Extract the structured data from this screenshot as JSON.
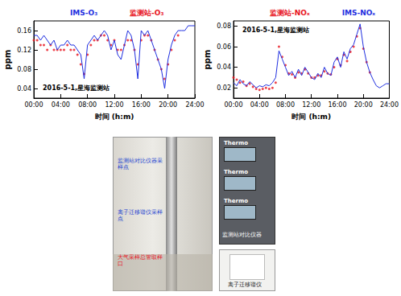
{
  "chart_data": [
    {
      "type": "line",
      "legend": "top",
      "grid": false,
      "annotation": "2016-5-1,星海监测站",
      "x_label": "时间 (h:m)",
      "y_label": "ppm",
      "x": [
        0,
        0.5,
        1,
        1.5,
        2,
        2.5,
        3,
        3.5,
        4,
        4.5,
        5,
        5.5,
        6,
        6.5,
        7,
        7.5,
        8,
        8.5,
        9,
        9.5,
        10,
        10.5,
        11,
        11.5,
        12,
        12.5,
        13,
        13.5,
        14,
        14.5,
        15,
        15.5,
        16,
        16.5,
        17,
        17.5,
        18,
        18.5,
        19,
        19.5,
        20,
        20.5,
        21,
        21.5,
        22,
        22.5,
        23,
        23.5,
        24
      ],
      "xlim": [
        0,
        24
      ],
      "xticks": [
        {
          "value": 0,
          "label": "00:00"
        },
        {
          "value": 4,
          "label": "04:00"
        },
        {
          "value": 8,
          "label": "08:00"
        },
        {
          "value": 12,
          "label": "12:00"
        },
        {
          "value": 16,
          "label": "16:00"
        },
        {
          "value": 20,
          "label": "20:00"
        },
        {
          "value": 24,
          "label": "24:00"
        }
      ],
      "ylim": [
        0.02,
        0.18
      ],
      "yticks": [
        0.04,
        0.08,
        0.12,
        0.16
      ],
      "series": [
        {
          "name": "IMS-O₃",
          "type": "line",
          "color": "#1f2fe0",
          "line_style": "solid",
          "values": [
            0.15,
            0.15,
            0.14,
            0.15,
            0.14,
            0.13,
            0.14,
            0.12,
            0.13,
            0.13,
            0.14,
            0.13,
            0.13,
            0.12,
            0.11,
            0.06,
            0.13,
            0.14,
            0.15,
            0.14,
            0.15,
            0.16,
            0.15,
            0.12,
            0.14,
            0.11,
            0.1,
            0.13,
            0.16,
            0.15,
            0.12,
            0.06,
            0.16,
            0.15,
            0.16,
            0.14,
            0.12,
            0.1,
            0.08,
            0.04,
            0.1,
            0.13,
            0.15,
            0.16,
            0.16,
            0.16,
            0.17,
            0.17,
            0.17
          ]
        },
        {
          "name": "监测站-O₃",
          "type": "scatter",
          "color": "#e8141e",
          "marker": "circle",
          "values": [
            0.14,
            0.14,
            0.13,
            0.13,
            0.12,
            0.13,
            0.12,
            0.12,
            0.12,
            0.12,
            0.13,
            0.12,
            0.12,
            0.11,
            0.09,
            0.07,
            0.11,
            0.13,
            0.14,
            0.14,
            0.15,
            0.15,
            0.14,
            0.13,
            0.14,
            0.12,
            0.12,
            0.13,
            0.14,
            0.14,
            0.12,
            0.09,
            0.14,
            0.15,
            0.15,
            0.14,
            0.12,
            0.1,
            0.08,
            0.06,
            0.09,
            0.12,
            0.14,
            0.15,
            null,
            null,
            null,
            null,
            null
          ]
        }
      ]
    },
    {
      "type": "line",
      "legend": "top",
      "grid": false,
      "annotation": "2016-5-1,星海监测站",
      "x_label": "时间 (h:m)",
      "y_label": "ppm",
      "x": [
        0,
        0.5,
        1,
        1.5,
        2,
        2.5,
        3,
        3.5,
        4,
        4.5,
        5,
        5.5,
        6,
        6.5,
        7,
        7.5,
        8,
        8.5,
        9,
        9.5,
        10,
        10.5,
        11,
        11.5,
        12,
        12.5,
        13,
        13.5,
        14,
        14.5,
        15,
        15.5,
        16,
        16.5,
        17,
        17.5,
        18,
        18.5,
        19,
        19.5,
        20,
        20.5,
        21,
        21.5,
        22,
        22.5,
        23,
        23.5,
        24
      ],
      "xlim": [
        0,
        24
      ],
      "xticks": [
        {
          "value": 0,
          "label": "00:00"
        },
        {
          "value": 4,
          "label": "04:00"
        },
        {
          "value": 8,
          "label": "08:00"
        },
        {
          "value": 12,
          "label": "12:00"
        },
        {
          "value": 16,
          "label": "16:00"
        },
        {
          "value": 20,
          "label": "20:00"
        },
        {
          "value": 24,
          "label": "24:00"
        }
      ],
      "ylim": [
        0.01,
        0.085
      ],
      "yticks": [
        0.02,
        0.04,
        0.06,
        0.08
      ],
      "series": [
        {
          "name": "监测站-NOₓ",
          "type": "scatter",
          "color": "#e8141e",
          "marker": "circle",
          "values": [
            0.03,
            0.028,
            0.025,
            0.026,
            0.022,
            0.024,
            0.021,
            0.019,
            0.018,
            0.019,
            0.02,
            0.019,
            0.02,
            0.025,
            0.06,
            0.05,
            0.042,
            0.034,
            0.033,
            0.03,
            0.035,
            0.034,
            0.038,
            0.034,
            0.03,
            0.03,
            0.032,
            0.032,
            0.036,
            0.034,
            0.033,
            0.04,
            0.048,
            0.042,
            0.052,
            0.046,
            0.055,
            0.06,
            0.07,
            0.078,
            0.058,
            0.045,
            0.035,
            null,
            null,
            null,
            null,
            null,
            null
          ]
        },
        {
          "name": "IMS-NOₓ",
          "type": "line",
          "color": "#1f2fe0",
          "line_style": "solid",
          "values": [
            0.025,
            0.022,
            0.028,
            0.024,
            0.022,
            0.026,
            0.023,
            0.02,
            0.022,
            0.021,
            0.023,
            0.022,
            0.025,
            0.03,
            0.056,
            0.048,
            0.04,
            0.032,
            0.036,
            0.03,
            0.038,
            0.032,
            0.04,
            0.035,
            0.03,
            0.028,
            0.034,
            0.03,
            0.04,
            0.034,
            0.032,
            0.045,
            0.05,
            0.04,
            0.055,
            0.048,
            0.058,
            0.062,
            0.072,
            0.082,
            0.06,
            0.045,
            0.035,
            0.028,
            0.022,
            0.02,
            0.022,
            0.024,
            0.024
          ]
        }
      ]
    }
  ],
  "photos": {
    "sampling_labels": [
      {
        "text": "监测站对比仪器采样点",
        "color": "#1a3fd0"
      },
      {
        "text": "离子迁移谱仪采样点",
        "color": "#1a3fd0"
      },
      {
        "text": "大气采样总管取样口",
        "color": "#e8141e"
      }
    ],
    "instrument_brands": [
      "Thermo",
      "Thermo",
      "Thermo"
    ],
    "instrument_caption": "监测站对比仪器",
    "ims_caption": "离子迁移谱仪"
  }
}
